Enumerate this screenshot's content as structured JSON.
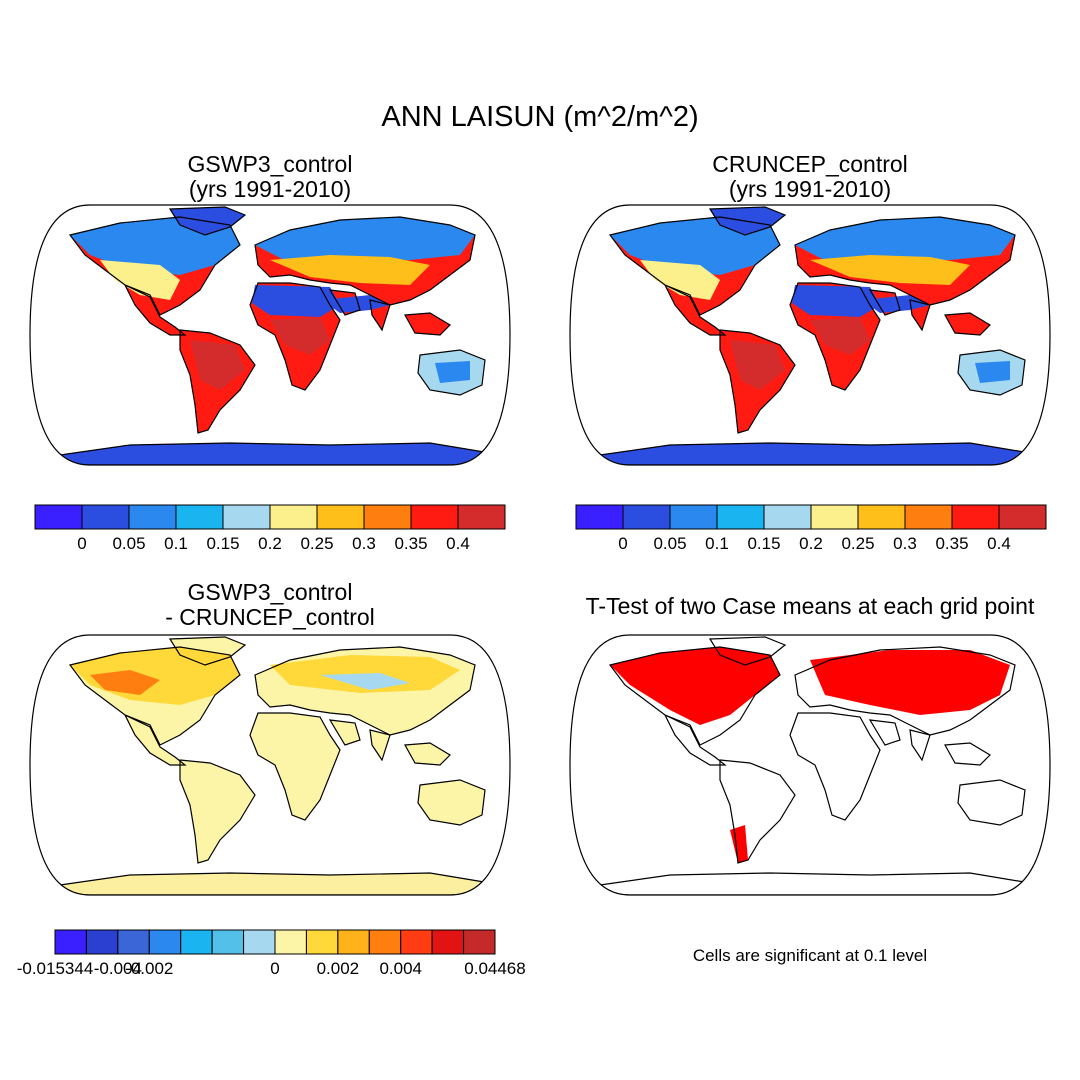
{
  "title": "ANN LAISUN (m^2/m^2)",
  "panels": {
    "top_left": {
      "title_line1": "GSWP3_control",
      "title_line2": "(yrs 1991-2010)"
    },
    "top_right": {
      "title_line1": "CRUNCEP_control",
      "title_line2": "(yrs 1991-2010)"
    },
    "bottom_left": {
      "title_line1": "GSWP3_control",
      "title_line2": "- CRUNCEP_control"
    },
    "bottom_right": {
      "title_line1": "T-Test of two Case means at each grid point",
      "title_line2": ""
    }
  },
  "colorbar_main": {
    "colors": [
      "#3a1fff",
      "#2b4de0",
      "#2a88ee",
      "#1ab4f0",
      "#a6d8f0",
      "#fcf08c",
      "#ffbf1a",
      "#ff7e10",
      "#ff1b12",
      "#d42c2c"
    ],
    "tick_labels": [
      "0",
      "0.05",
      "0.1",
      "0.15",
      "0.2",
      "0.25",
      "0.3",
      "0.35",
      "0.4"
    ]
  },
  "colorbar_diff": {
    "colors": [
      "#3a1fff",
      "#2b3fd0",
      "#3a66d8",
      "#2a88ee",
      "#1ab4f0",
      "#52c0e8",
      "#a6d8f0",
      "#fcf5a8",
      "#ffd83a",
      "#ffb21a",
      "#ff7e10",
      "#ff3c12",
      "#e21313",
      "#c42a2a"
    ],
    "tick_labels": [
      "-0.015344",
      "",
      "-0.004",
      "-0.002",
      "",
      "",
      "",
      "0",
      "",
      "0.002",
      "",
      "0.004",
      "",
      "0.04468"
    ]
  },
  "significance_note": "Cells are significant at 0.1 level",
  "legend_colors": {
    "significant": "#ff0000",
    "background": "#ffffff"
  }
}
